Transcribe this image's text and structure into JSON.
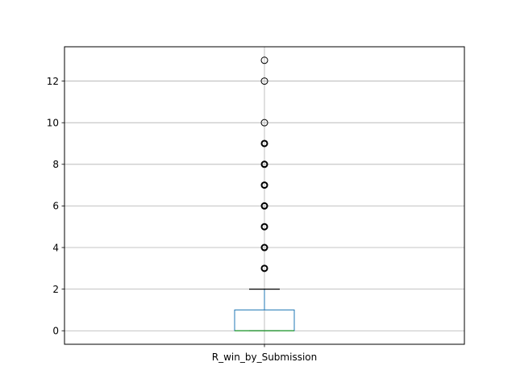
{
  "chart_data": {
    "type": "box",
    "categories": [
      "R_win_by_Submission"
    ],
    "yticks": [
      0,
      2,
      4,
      6,
      8,
      10,
      12
    ],
    "ylim": [
      -0.65,
      13.65
    ],
    "grid": true,
    "box": {
      "q1": 0,
      "median": 0,
      "q3": 1,
      "whisker_low": 0,
      "whisker_high": 2
    },
    "outliers": [
      3,
      4,
      5,
      6,
      7,
      8,
      9,
      10,
      12,
      13
    ],
    "colors": {
      "box": "#1f77b4",
      "median": "#2ca02c",
      "whisker": "#000000",
      "grid": "#b0b0b0",
      "outlier_edge": "#000000"
    }
  }
}
